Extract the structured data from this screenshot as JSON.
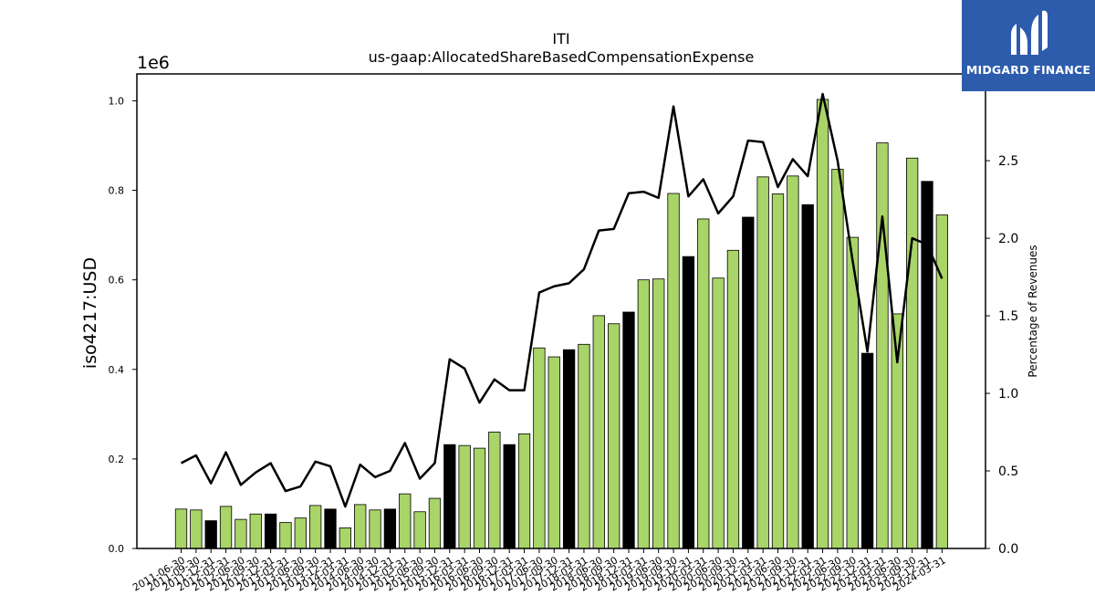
{
  "brand": {
    "name": "MIDGARD FINANCE",
    "background": "#2d5cad",
    "icon": "midgard-logo-mark"
  },
  "chart_data": {
    "type": "bar",
    "title": "ITI",
    "subtitle": "us-gaap:AllocatedShareBasedCompensationExpense",
    "ylabel": "iso4217:USD",
    "y2label": "Percentage of Revenues",
    "y_scale_label": "1e6",
    "ylim": [
      0,
      1.06
    ],
    "y2lim": [
      0,
      2.93
    ],
    "yticks": [
      "0.0",
      "0.2",
      "0.4",
      "0.6",
      "0.8",
      "1.0"
    ],
    "y2ticks": [
      "0.0",
      "0.5",
      "1.0",
      "1.5",
      "2.0",
      "2.5"
    ],
    "colors": {
      "bar": "#a8d468",
      "bar_q4": "#000000",
      "line": "#000000"
    },
    "categories": [
      "2011-06-30",
      "2011-09-30",
      "2011-12-31",
      "2012-03-31",
      "2012-06-30",
      "2012-09-30",
      "2012-12-31",
      "2013-03-31",
      "2013-06-30",
      "2013-09-30",
      "2013-12-31",
      "2014-03-31",
      "2014-06-30",
      "2014-09-30",
      "2014-12-31",
      "2015-03-31",
      "2015-06-30",
      "2015-09-30",
      "2015-12-31",
      "2016-03-31",
      "2016-06-30",
      "2016-09-30",
      "2016-12-31",
      "2017-03-31",
      "2017-06-30",
      "2017-09-30",
      "2017-12-31",
      "2018-03-31",
      "2018-06-30",
      "2018-09-30",
      "2018-12-31",
      "2019-03-31",
      "2019-06-30",
      "2019-09-30",
      "2019-12-31",
      "2020-03-31",
      "2020-06-30",
      "2020-09-30",
      "2020-12-31",
      "2021-03-31",
      "2021-06-30",
      "2021-09-30",
      "2021-12-31",
      "2022-03-31",
      "2022-06-30",
      "2022-09-30",
      "2022-12-31",
      "2023-03-31",
      "2023-06-30",
      "2023-09-30",
      "2023-12-31",
      "2024-03-31"
    ],
    "series": [
      {
        "values": [
          0.088,
          0.086,
          0.062,
          0.094,
          0.065,
          0.077,
          0.077,
          0.058,
          0.068,
          0.096,
          0.088,
          0.046,
          0.098,
          0.086,
          0.088,
          0.122,
          0.082,
          0.112,
          0.232,
          0.23,
          0.224,
          0.26,
          0.232,
          0.256,
          0.448,
          0.428,
          0.444,
          0.456,
          0.52,
          0.502,
          0.528,
          0.6,
          0.602,
          0.793,
          0.652,
          0.736,
          0.604,
          0.666,
          0.74,
          0.83,
          0.792,
          0.832,
          0.768,
          1.003,
          0.847,
          0.695,
          0.436,
          0.906,
          0.524,
          0.872,
          0.82,
          0.745
        ],
        "highlight": [
          false,
          false,
          true,
          false,
          false,
          false,
          true,
          false,
          false,
          false,
          true,
          false,
          false,
          false,
          true,
          false,
          false,
          false,
          true,
          false,
          false,
          false,
          true,
          false,
          false,
          false,
          true,
          false,
          false,
          false,
          true,
          false,
          false,
          false,
          true,
          false,
          false,
          false,
          true,
          false,
          false,
          false,
          true,
          false,
          false,
          false,
          true,
          false,
          false,
          false,
          true,
          false
        ]
      },
      {
        "axis": "right",
        "type": "line",
        "values": [
          0.55,
          0.6,
          0.42,
          0.62,
          0.41,
          0.49,
          0.55,
          0.37,
          0.4,
          0.56,
          0.53,
          0.27,
          0.54,
          0.46,
          0.5,
          0.68,
          0.45,
          0.55,
          1.22,
          1.16,
          0.94,
          1.09,
          1.02,
          1.02,
          1.65,
          1.69,
          1.71,
          1.8,
          2.05,
          2.06,
          2.29,
          2.3,
          2.26,
          2.85,
          2.27,
          2.38,
          2.16,
          2.27,
          2.63,
          2.62,
          2.33,
          2.51,
          2.4,
          2.93,
          2.5,
          1.86,
          1.27,
          2.14,
          1.2,
          2.0,
          1.96,
          1.74
        ]
      }
    ]
  }
}
